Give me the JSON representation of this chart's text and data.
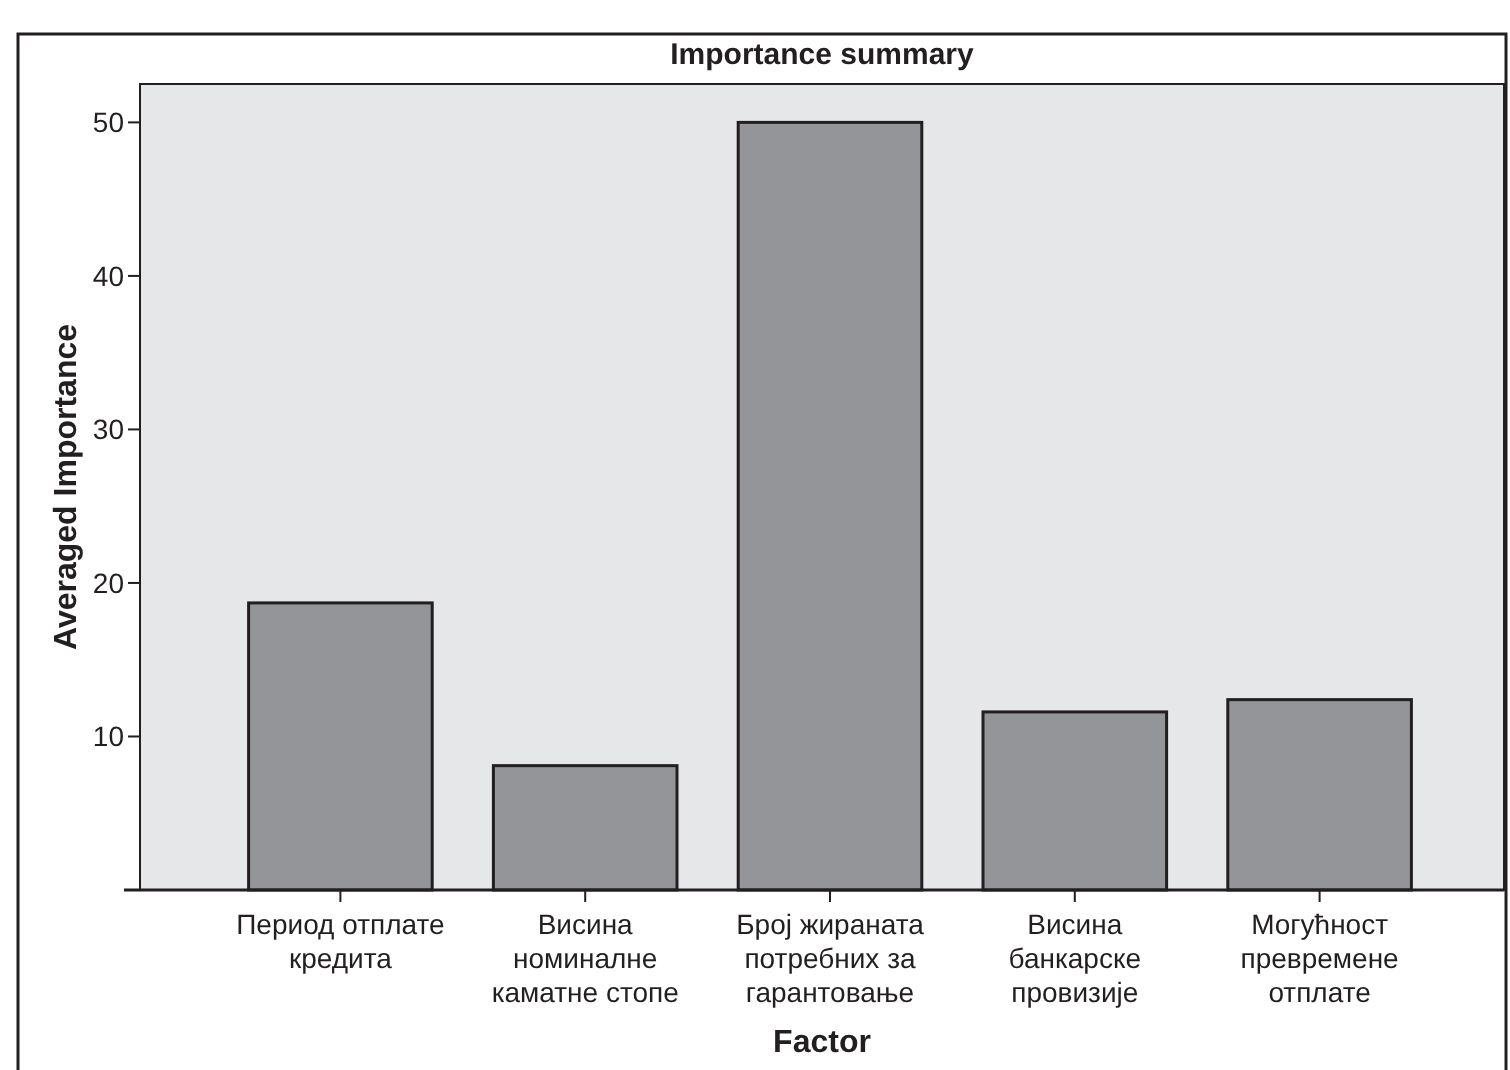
{
  "chart_data": {
    "type": "bar",
    "title": "Importance summary",
    "xlabel": "Factor",
    "ylabel": "Averaged Importance",
    "categories": [
      "Период отплате\nкредита",
      "Висина\nноминалне\nкаматне стопе",
      "Број жираната\nпотребних за\nгарантовање",
      "Висина\nбанкарске\nпровизије",
      "Могућност\nпревремене\nотплате"
    ],
    "values": [
      18.7,
      8.1,
      50,
      11.6,
      12.4
    ],
    "color": "#939598",
    "ylim": [
      0,
      52.5
    ],
    "yticks": [
      {
        "value": 0,
        "label": null
      },
      10,
      20,
      30,
      40,
      50
    ],
    "grid": false
  }
}
